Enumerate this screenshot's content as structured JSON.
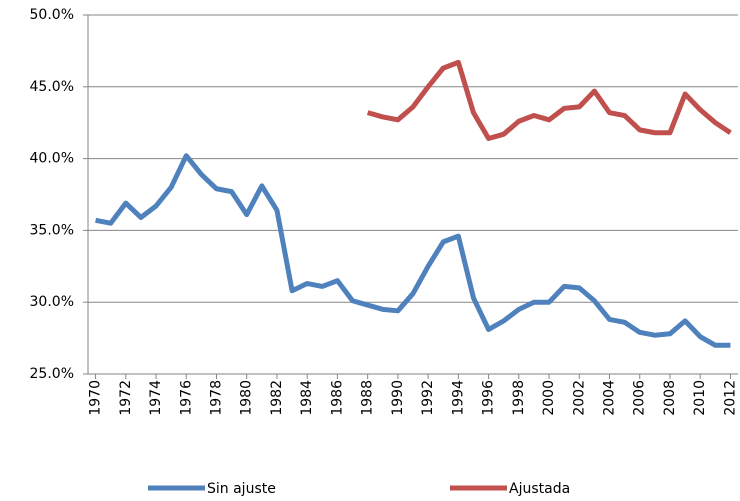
{
  "chart_data": {
    "type": "line",
    "x": [
      1970,
      1971,
      1972,
      1973,
      1974,
      1975,
      1976,
      1977,
      1978,
      1979,
      1980,
      1981,
      1982,
      1983,
      1984,
      1985,
      1986,
      1987,
      1988,
      1989,
      1990,
      1991,
      1992,
      1993,
      1994,
      1995,
      1996,
      1997,
      1998,
      1999,
      2000,
      2001,
      2002,
      2003,
      2004,
      2005,
      2006,
      2007,
      2008,
      2009,
      2010,
      2011,
      2012
    ],
    "xlim": [
      1969.5,
      2012.5
    ],
    "xticks": [
      1970,
      1972,
      1974,
      1976,
      1978,
      1980,
      1982,
      1984,
      1986,
      1988,
      1990,
      1992,
      1994,
      1996,
      1998,
      2000,
      2002,
      2004,
      2006,
      2008,
      2010,
      2012
    ],
    "ylim": [
      25,
      50
    ],
    "yticks": [
      {
        "value": 25,
        "label": "25.0%"
      },
      {
        "value": 30,
        "label": "30.0%"
      },
      {
        "value": 35,
        "label": "35.0%"
      },
      {
        "value": 40,
        "label": "40.0%"
      },
      {
        "value": 45,
        "label": "45.0%"
      },
      {
        "value": 50,
        "label": "50.0%"
      }
    ],
    "grid": true,
    "legend": "bottom",
    "series": [
      {
        "name": "Sin ajuste",
        "color": "#4f81bd",
        "values": [
          35.7,
          35.5,
          36.9,
          35.9,
          36.7,
          38.0,
          40.2,
          38.9,
          37.9,
          37.7,
          36.1,
          38.1,
          36.4,
          30.8,
          31.3,
          31.1,
          31.5,
          30.1,
          29.8,
          29.5,
          29.4,
          30.6,
          32.5,
          34.2,
          34.6,
          30.3,
          28.1,
          28.7,
          29.5,
          30.0,
          30.0,
          31.1,
          31.0,
          30.1,
          28.8,
          28.6,
          27.9,
          27.7,
          27.8,
          28.7,
          27.6,
          27.0,
          27.0
        ]
      },
      {
        "name": "Ajustada",
        "color": "#c0504d",
        "values": [
          null,
          null,
          null,
          null,
          null,
          null,
          null,
          null,
          null,
          null,
          null,
          null,
          null,
          null,
          null,
          null,
          null,
          null,
          43.2,
          42.9,
          42.7,
          43.6,
          45.0,
          46.3,
          46.7,
          43.2,
          41.4,
          41.7,
          42.6,
          43.0,
          42.7,
          43.5,
          43.6,
          44.7,
          43.2,
          43.0,
          42.0,
          41.8,
          41.8,
          44.5,
          43.4,
          42.5,
          41.8
        ]
      }
    ]
  }
}
